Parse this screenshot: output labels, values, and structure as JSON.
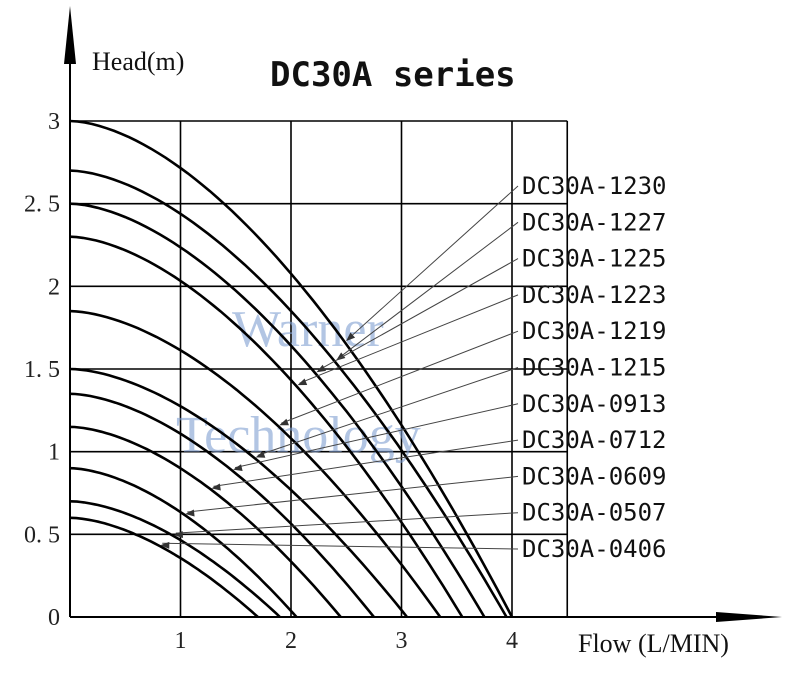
{
  "chart_data": {
    "type": "line",
    "title": "DC30A series",
    "xlabel": "Flow (L/MIN)",
    "ylabel": "Head(m)",
    "xlim": [
      0,
      4.5
    ],
    "ylim": [
      0,
      3
    ],
    "x_ticks": [
      1,
      2,
      3,
      4
    ],
    "y_ticks": [
      0,
      0.5,
      1,
      1.5,
      2,
      2.5,
      3
    ],
    "x_tick_labels": [
      "1",
      "2",
      "3",
      "4"
    ],
    "y_tick_labels": [
      "0",
      "0. 5",
      "1",
      "1. 5",
      "2",
      "2. 5",
      "3"
    ],
    "grid": true,
    "watermark": [
      "Warner",
      "Technology"
    ],
    "series": [
      {
        "name": "DC30A-1230",
        "max_head": 3.0,
        "max_flow": 4.0
      },
      {
        "name": "DC30A-1227",
        "max_head": 2.7,
        "max_flow": 3.95
      },
      {
        "name": "DC30A-1225",
        "max_head": 2.5,
        "max_flow": 3.75
      },
      {
        "name": "DC30A-1223",
        "max_head": 2.3,
        "max_flow": 3.55
      },
      {
        "name": "DC30A-1219",
        "max_head": 1.85,
        "max_flow": 3.35
      },
      {
        "name": "DC30A-1215",
        "max_head": 1.5,
        "max_flow": 3.05
      },
      {
        "name": "DC30A-0913",
        "max_head": 1.35,
        "max_flow": 2.75
      },
      {
        "name": "DC30A-0712",
        "max_head": 1.15,
        "max_flow": 2.45
      },
      {
        "name": "DC30A-0609",
        "max_head": 0.9,
        "max_flow": 2.05
      },
      {
        "name": "DC30A-0507",
        "max_head": 0.7,
        "max_flow": 1.9
      },
      {
        "name": "DC30A-0406",
        "max_head": 0.6,
        "max_flow": 1.7
      }
    ]
  }
}
